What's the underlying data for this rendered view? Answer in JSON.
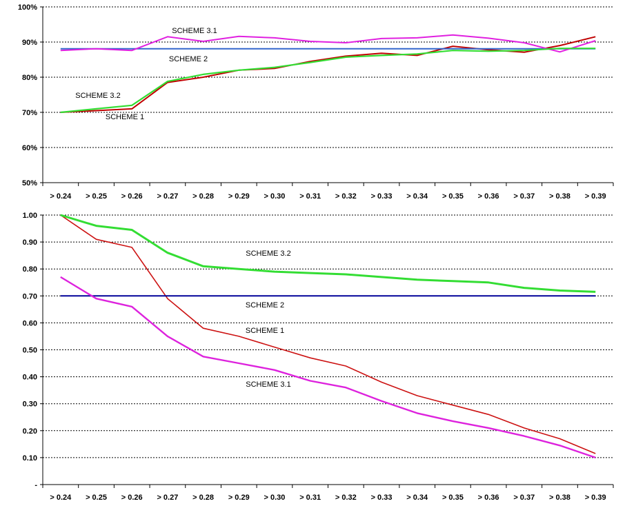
{
  "chart_data": [
    {
      "type": "line",
      "x": [
        "> 0.24",
        "> 0.25",
        "> 0.26",
        "> 0.27",
        "> 0.28",
        "> 0.29",
        "> 0.30",
        "> 0.31",
        "> 0.32",
        "> 0.33",
        "> 0.34",
        "> 0.35",
        "> 0.36",
        "> 0.37",
        "> 0.38",
        "> 0.39"
      ],
      "ylim": [
        0.5,
        1.0
      ],
      "yticks": [
        0.5,
        0.6,
        0.7,
        0.8,
        0.9,
        1.0
      ],
      "ytick_labels": [
        "50%",
        "60%",
        "70%",
        "80%",
        "90%",
        "100%"
      ],
      "grid": "horizontal dotted",
      "series": [
        {
          "name": "SCHEME 1",
          "color": "#c00000",
          "values": [
            0.7,
            0.705,
            0.71,
            0.785,
            0.8,
            0.82,
            0.825,
            0.845,
            0.86,
            0.868,
            0.862,
            0.888,
            0.878,
            0.871,
            0.89,
            0.915
          ]
        },
        {
          "name": "SCHEME 2",
          "color": "#3366cc",
          "values": [
            0.881,
            0.881,
            0.881,
            0.881,
            0.881,
            0.881,
            0.881,
            0.881,
            0.881,
            0.881,
            0.881,
            0.881,
            0.881,
            0.881,
            0.881,
            0.881
          ]
        },
        {
          "name": "SCHEME 3.1",
          "color": "#e020e0",
          "values": [
            0.876,
            0.881,
            0.876,
            0.915,
            0.902,
            0.916,
            0.912,
            0.902,
            0.898,
            0.91,
            0.912,
            0.92,
            0.911,
            0.898,
            0.872,
            0.904
          ]
        },
        {
          "name": "SCHEME 3.2",
          "color": "#33dd33",
          "values": [
            0.7,
            0.71,
            0.72,
            0.788,
            0.808,
            0.82,
            0.828,
            0.842,
            0.857,
            0.862,
            0.866,
            0.876,
            0.874,
            0.876,
            0.882,
            0.882
          ]
        }
      ],
      "annotations": [
        "SCHEME 3.1",
        "SCHEME 2",
        "SCHEME 3.2",
        "SCHEME 1"
      ]
    },
    {
      "type": "line",
      "x": [
        "> 0.24",
        "> 0.25",
        "> 0.26",
        "> 0.27",
        "> 0.28",
        "> 0.29",
        "> 0.30",
        "> 0.31",
        "> 0.32",
        "> 0.33",
        "> 0.34",
        "> 0.35",
        "> 0.36",
        "> 0.37",
        "> 0.38",
        "> 0.39"
      ],
      "ylim": [
        0,
        1.0
      ],
      "yticks": [
        0,
        0.1,
        0.2,
        0.3,
        0.4,
        0.5,
        0.6,
        0.7,
        0.8,
        0.9,
        1.0
      ],
      "ytick_labels": [
        "-",
        "0.10",
        "0.20",
        "0.30",
        "0.40",
        "0.50",
        "0.60",
        "0.70",
        "0.80",
        "0.90",
        "1.00"
      ],
      "grid": "horizontal dotted",
      "series": [
        {
          "name": "SCHEME 1",
          "color": "#cc1111",
          "values": [
            1.0,
            0.91,
            0.88,
            0.69,
            0.58,
            0.55,
            0.51,
            0.47,
            0.44,
            0.38,
            0.33,
            0.295,
            0.26,
            0.21,
            0.17,
            0.115
          ]
        },
        {
          "name": "SCHEME 2",
          "color": "#000099",
          "values": [
            0.7,
            0.7,
            0.7,
            0.7,
            0.7,
            0.7,
            0.7,
            0.7,
            0.7,
            0.7,
            0.7,
            0.7,
            0.7,
            0.7,
            0.7,
            0.7
          ]
        },
        {
          "name": "SCHEME 3.1",
          "color": "#dd22dd",
          "values": [
            0.77,
            0.69,
            0.66,
            0.55,
            0.475,
            0.45,
            0.425,
            0.385,
            0.36,
            0.31,
            0.265,
            0.235,
            0.21,
            0.18,
            0.145,
            0.1
          ]
        },
        {
          "name": "SCHEME 3.2",
          "color": "#33dd33",
          "values": [
            1.0,
            0.96,
            0.945,
            0.86,
            0.81,
            0.8,
            0.79,
            0.785,
            0.78,
            0.77,
            0.76,
            0.755,
            0.75,
            0.73,
            0.72,
            0.715
          ]
        }
      ],
      "annotations": [
        "SCHEME 3.2",
        "SCHEME 2",
        "SCHEME 1",
        "SCHEME 3.1"
      ]
    }
  ]
}
